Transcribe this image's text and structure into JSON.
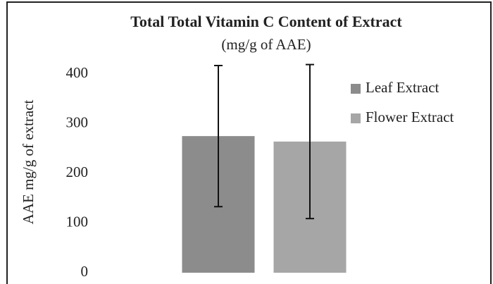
{
  "chart_data": {
    "type": "bar",
    "title": "Total Total Vitamin C Content of Extract",
    "subtitle": "(mg/g of AAE)",
    "y_label": "AAE mg/g of extract",
    "categories": [
      null
    ],
    "series": [
      {
        "name": "Leaf Extract",
        "color": "#8c8c8c",
        "values": [
          275
        ],
        "errors": [
          142
        ]
      },
      {
        "name": "Flower Extract",
        "color": "#a6a6a6",
        "values": [
          264
        ],
        "errors": [
          155
        ]
      }
    ],
    "ylim": [
      0,
      450
    ],
    "yticks": [
      0,
      100,
      200,
      300,
      400
    ],
    "grid": false,
    "legend": "right"
  }
}
